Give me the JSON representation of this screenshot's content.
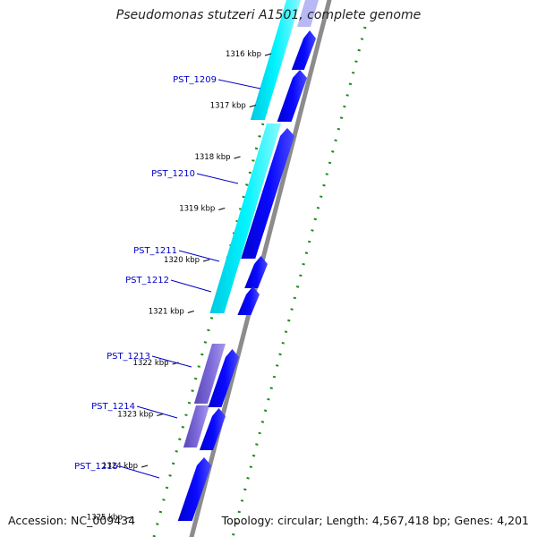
{
  "title": "Pseudomonas stutzeri A1501, complete genome",
  "footer": {
    "accession": "Accession: NC_009434",
    "summary": "Topology: circular; Length: 4,567,418 bp; Genes: 4,201"
  },
  "ticks": [
    {
      "label": "1316 kbp",
      "kbp": 1316
    },
    {
      "label": "1317 kbp",
      "kbp": 1317
    },
    {
      "label": "1318 kbp",
      "kbp": 1318
    },
    {
      "label": "1319 kbp",
      "kbp": 1319
    },
    {
      "label": "1320 kbp",
      "kbp": 1320
    },
    {
      "label": "1321 kbp",
      "kbp": 1321
    },
    {
      "label": "1322 kbp",
      "kbp": 1322
    },
    {
      "label": "1323 kbp",
      "kbp": 1323
    },
    {
      "label": "1324 kbp",
      "kbp": 1324
    },
    {
      "label": "1325 kbp",
      "kbp": 1325
    }
  ],
  "genes": [
    {
      "label": "PST_1209"
    },
    {
      "label": "PST_1210"
    },
    {
      "label": "PST_1211"
    },
    {
      "label": "PST_1212"
    },
    {
      "label": "PST_1213"
    },
    {
      "label": "PST_1214"
    },
    {
      "label": "PST_1215"
    }
  ],
  "colors": {
    "gene_label": "#0000c8",
    "cds": "#0000e6",
    "cds_light": "#8a8aff",
    "cog_cyan": "#00e8f0",
    "cog_purple": "#7060c8",
    "backbone": "#8c8c8c",
    "gc_dots": "#1a8c1a"
  }
}
